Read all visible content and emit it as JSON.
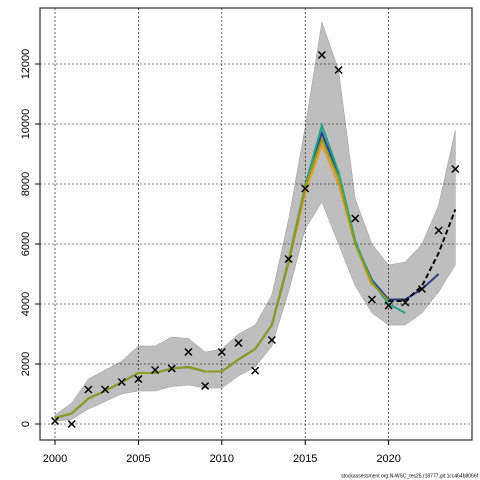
{
  "chart_data": {
    "type": "line",
    "x": [
      2000,
      2001,
      2002,
      2003,
      2004,
      2005,
      2006,
      2007,
      2008,
      2009,
      2010,
      2011,
      2012,
      2013,
      2014,
      2015,
      2016,
      2017,
      2018,
      2019,
      2020,
      2021,
      2022,
      2023,
      2024
    ],
    "xlim": [
      1999.1,
      2025
    ],
    "ylim": [
      -533,
      13867
    ],
    "xticks": [
      2000,
      2005,
      2010,
      2015,
      2020
    ],
    "yticks": [
      0,
      2000,
      4000,
      6000,
      8000,
      10000,
      12000
    ],
    "grid": true,
    "band": {
      "color": "#bebebe",
      "upper": [
        300,
        700,
        1500,
        1800,
        2100,
        2600,
        2600,
        2900,
        2850,
        2400,
        2500,
        3000,
        3300,
        4300,
        6800,
        9900,
        13400,
        11800,
        7500,
        6000,
        5300,
        5400,
        6000,
        7300,
        9800
      ],
      "lower": [
        100,
        150,
        500,
        750,
        1000,
        1100,
        1100,
        1250,
        1300,
        1200,
        1200,
        1600,
        1900,
        2600,
        4400,
        6500,
        7400,
        6000,
        4600,
        3700,
        3300,
        3300,
        3700,
        4400,
        5300
      ]
    },
    "series": [
      {
        "color": "#e0a030",
        "values": [
          200,
          350,
          850,
          1100,
          1400,
          1700,
          1700,
          1850,
          1900,
          1750,
          1750,
          2150,
          2500,
          3300,
          5350,
          7700,
          9300,
          8000,
          6000,
          4600,
          null,
          null,
          null,
          null,
          null
        ]
      },
      {
        "color": "#2c3e8c",
        "values": [
          200,
          350,
          850,
          1100,
          1400,
          1700,
          1700,
          1850,
          1900,
          1750,
          1750,
          2150,
          2500,
          3300,
          5400,
          7900,
          9700,
          8300,
          6050,
          4800,
          4150,
          4150,
          4500,
          5000,
          null
        ]
      },
      {
        "color": "#20a386",
        "values": [
          200,
          350,
          850,
          1100,
          1400,
          1700,
          1700,
          1850,
          1900,
          1750,
          1750,
          2150,
          2500,
          3300,
          5450,
          7950,
          9950,
          8400,
          6100,
          4750,
          4000,
          3700,
          null,
          null,
          null
        ]
      },
      {
        "color": "#8f9a20",
        "values": [
          200,
          350,
          850,
          1100,
          1400,
          1700,
          1700,
          1850,
          1900,
          1750,
          1750,
          2150,
          2500,
          3300,
          5400,
          7900,
          9500,
          8200,
          6000,
          4700,
          4100,
          null,
          null,
          null,
          null
        ]
      },
      {
        "color": "#000000",
        "dash": true,
        "values": [
          null,
          null,
          null,
          null,
          null,
          null,
          null,
          null,
          null,
          null,
          null,
          null,
          null,
          null,
          null,
          null,
          null,
          null,
          null,
          null,
          4100,
          4100,
          4600,
          5700,
          7150
        ]
      }
    ],
    "observations": {
      "color": "#000000",
      "values": [
        100,
        0,
        1150,
        1150,
        1400,
        1500,
        1800,
        1850,
        2400,
        1270,
        2400,
        2700,
        1780,
        2800,
        5500,
        7850,
        12300,
        11800,
        6850,
        4150,
        3950,
        4050,
        4500,
        6450,
        8500
      ]
    },
    "footer": "stockassessment.org,N-WSC_tes25,r18777,git:1cc464b8066f"
  }
}
